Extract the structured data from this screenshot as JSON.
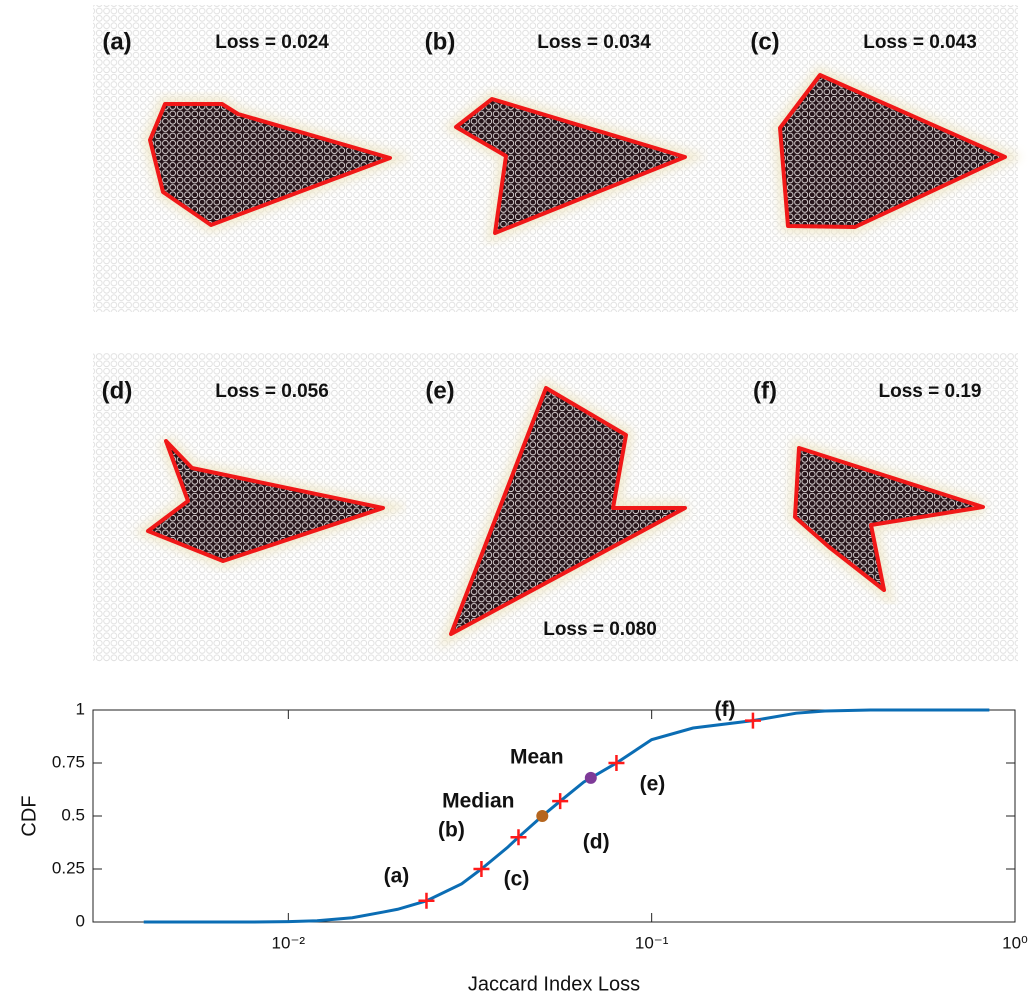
{
  "panels": [
    {
      "label": "(a)",
      "loss": "Loss = 0.024"
    },
    {
      "label": "(b)",
      "loss": "Loss = 0.034"
    },
    {
      "label": "(c)",
      "loss": "Loss = 0.043"
    },
    {
      "label": "(d)",
      "loss": "Loss = 0.056"
    },
    {
      "label": "(e)",
      "loss": "Loss = 0.080"
    },
    {
      "label": "(f)",
      "loss": "Loss = 0.19"
    }
  ],
  "chart_data": {
    "type": "line",
    "xlabel": "Jaccard Index Loss",
    "ylabel": "CDF",
    "xscale": "log",
    "xlim": [
      0.0029,
      1
    ],
    "xticks": [
      {
        "value": 0.01,
        "label": "10⁻²"
      },
      {
        "value": 0.1,
        "label": "10⁻¹"
      },
      {
        "value": 1,
        "label": "10⁰"
      }
    ],
    "ylim": [
      0,
      1
    ],
    "yticks": [
      0,
      0.25,
      0.5,
      0.75,
      1
    ],
    "x": [
      0.004,
      0.006,
      0.008,
      0.01,
      0.012,
      0.015,
      0.018,
      0.02,
      0.024,
      0.03,
      0.034,
      0.04,
      0.043,
      0.05,
      0.056,
      0.065,
      0.08,
      0.1,
      0.13,
      0.19,
      0.25,
      0.3,
      0.4,
      0.6,
      0.85
    ],
    "series": [
      {
        "color": "#0b6db4",
        "values": [
          0,
          0,
          0,
          0.002,
          0.006,
          0.02,
          0.045,
          0.06,
          0.1,
          0.18,
          0.25,
          0.35,
          0.4,
          0.5,
          0.57,
          0.66,
          0.75,
          0.86,
          0.915,
          0.95,
          0.985,
          0.995,
          1,
          1,
          1
        ]
      }
    ],
    "markers": {
      "color": "#ff1a1a",
      "labels": [
        "(a)",
        "(b)",
        "(c)",
        "(d)",
        "(e)",
        "(f)"
      ],
      "x": [
        0.024,
        0.034,
        0.043,
        0.056,
        0.08,
        0.19
      ],
      "values": [
        0.1,
        0.25,
        0.4,
        0.57,
        0.75,
        0.95
      ]
    },
    "points": [
      {
        "label": "Median",
        "x": 0.05,
        "value": 0.5,
        "color": "#b5661f"
      },
      {
        "label": "Mean",
        "x": 0.068,
        "value": 0.68,
        "color": "#7e3a98"
      }
    ]
  }
}
